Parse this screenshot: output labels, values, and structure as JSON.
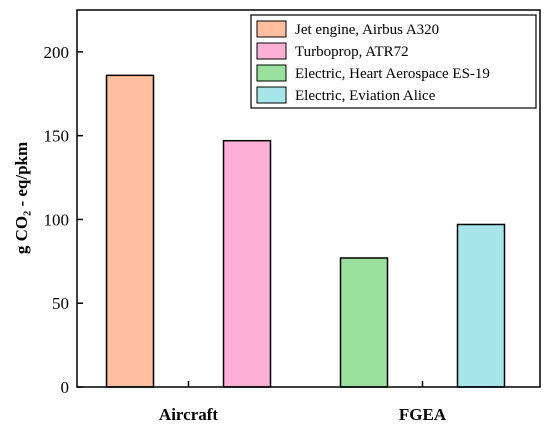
{
  "chart_data": {
    "type": "bar",
    "title": "",
    "xlabel": "",
    "ylabel": "g CO₂ - eq/pkm",
    "ylim": [
      0,
      225
    ],
    "yticks": [
      0,
      50,
      100,
      150,
      200
    ],
    "categories": [
      "Aircraft",
      "FGEA"
    ],
    "bars": [
      {
        "name": "Jet engine, Airbus A320",
        "category": "Aircraft",
        "value": 186,
        "color": "#FFBE9E"
      },
      {
        "name": "Turboprop, ATR72",
        "category": "Aircraft",
        "value": 147,
        "color": "#FFB0D6"
      },
      {
        "name": "Electric, Heart Aerospace ES-19",
        "category": "FGEA",
        "value": 77,
        "color": "#99E09C"
      },
      {
        "name": "Electric, Eviation Alice",
        "category": "FGEA",
        "value": 97,
        "color": "#A6E6EA"
      }
    ],
    "legend": {
      "position": "top-right"
    },
    "grid": false
  }
}
